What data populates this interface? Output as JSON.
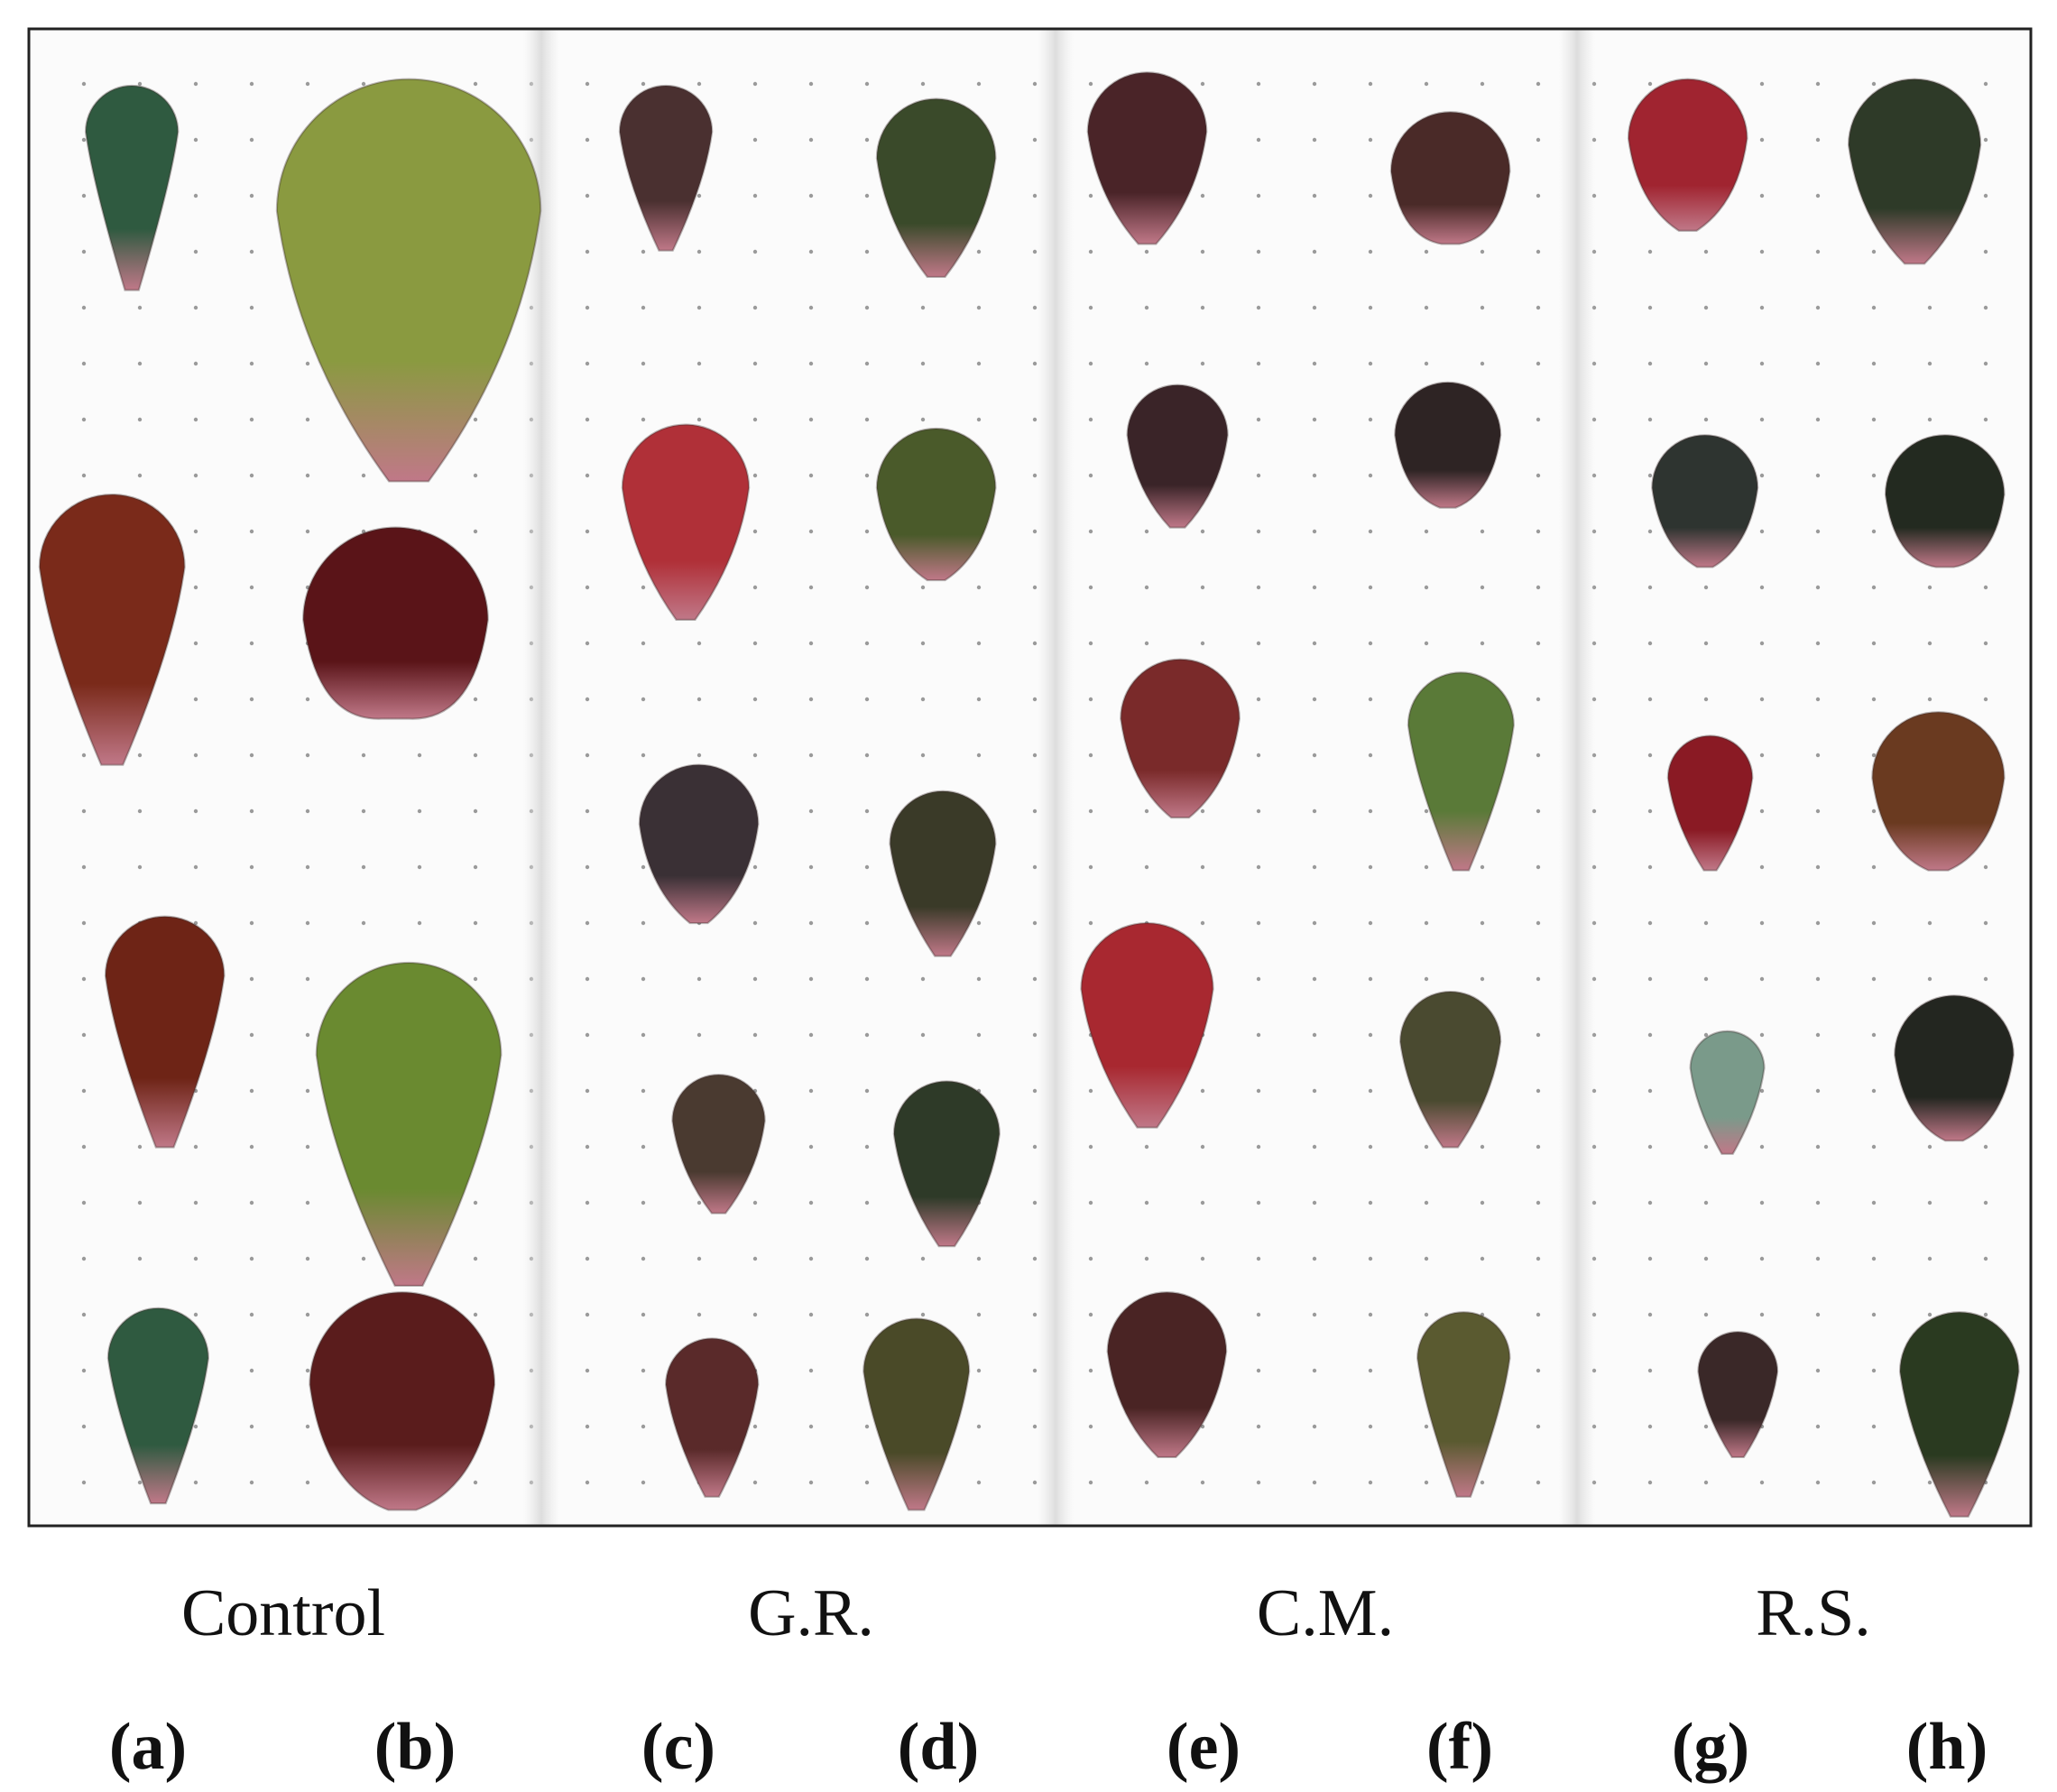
{
  "groups": [
    "Control",
    "G.R.",
    "C.M.",
    "R.S."
  ],
  "panels": [
    "(a)",
    "(b)",
    "(c)",
    "(d)",
    "(e)",
    "(f)",
    "(g)",
    "(h)"
  ]
}
